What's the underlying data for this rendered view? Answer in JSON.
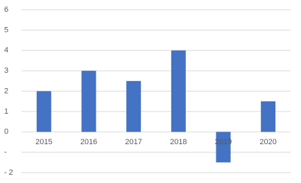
{
  "chart_data": {
    "type": "bar",
    "categories": [
      "2015",
      "2016",
      "2017",
      "2018",
      "2019",
      "2020"
    ],
    "values": [
      2,
      3,
      2.5,
      4,
      -1.5,
      1.5
    ],
    "color": "#4472c4",
    "ylim": [
      -2,
      6
    ],
    "yticks": [
      {
        "value": -2,
        "label": "- 2"
      },
      {
        "value": -1,
        "label": "-"
      },
      0,
      1,
      2,
      3,
      4,
      5,
      6
    ],
    "grid": true
  }
}
